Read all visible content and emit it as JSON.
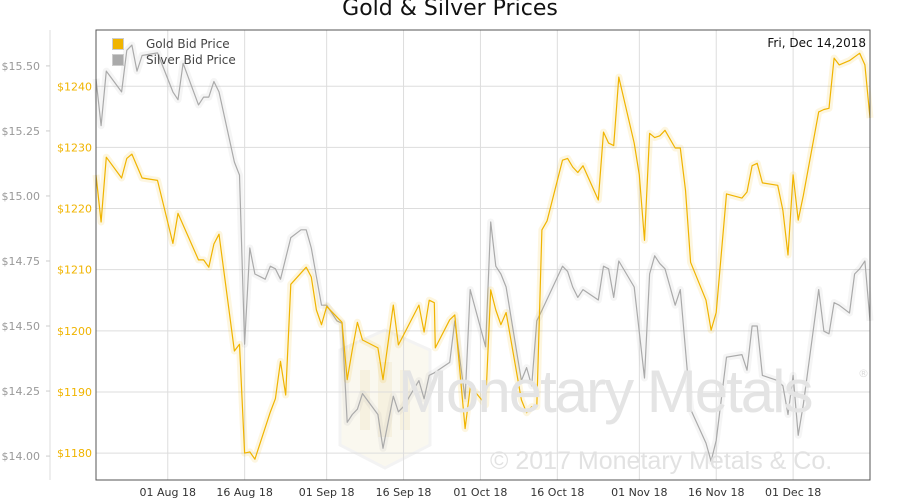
{
  "chart_data": {
    "type": "line",
    "title": "Gold & Silver Prices",
    "date_label": "Fri, Dec 14,2018",
    "watermark": "Monetary Metals",
    "copyright": "© 2017 Monetary Metals & Co.",
    "x_unit": "days since 18 Jul 2018",
    "xlim": [
      0,
      151
    ],
    "x_ticks": [
      {
        "day": 14,
        "label": "01 Aug 18"
      },
      {
        "day": 29,
        "label": "16 Aug 18"
      },
      {
        "day": 45,
        "label": "01 Sep 18"
      },
      {
        "day": 60,
        "label": "16 Sep 18"
      },
      {
        "day": 75,
        "label": "01 Oct 18"
      },
      {
        "day": 90,
        "label": "16 Oct 18"
      },
      {
        "day": 106,
        "label": "01 Nov 18"
      },
      {
        "day": 121,
        "label": "16 Nov 18"
      },
      {
        "day": 136,
        "label": "01 Dec 18"
      }
    ],
    "gold_axis": {
      "ylim": [
        1175.6,
        1249.2
      ],
      "ticks": [
        "$1180",
        "$1190",
        "$1200",
        "$1210",
        "$1220",
        "$1230",
        "$1240"
      ],
      "values": [
        1180,
        1190,
        1200,
        1210,
        1220,
        1230,
        1240
      ]
    },
    "silver_axis": {
      "ylim": [
        13.908,
        15.638
      ],
      "ticks": [
        "$14.00",
        "$14.25",
        "$14.50",
        "$14.75",
        "$15.00",
        "$15.25",
        "$15.50"
      ],
      "values": [
        14,
        14.25,
        14.5,
        14.75,
        15,
        15.25,
        15.5
      ]
    },
    "series": [
      {
        "name": "Gold Bid Price",
        "color": "#f0b400",
        "axis": "gold",
        "points": [
          [
            0,
            1225.5
          ],
          [
            1,
            1217.8
          ],
          [
            2,
            1228.4
          ],
          [
            5,
            1225
          ],
          [
            6,
            1228.2
          ],
          [
            7,
            1228.9
          ],
          [
            9,
            1225
          ],
          [
            12,
            1224.6
          ],
          [
            15,
            1214.3
          ],
          [
            16,
            1219.2
          ],
          [
            20,
            1211.6
          ],
          [
            21,
            1211.6
          ],
          [
            22,
            1210.4
          ],
          [
            23,
            1214.2
          ],
          [
            24,
            1215.8
          ],
          [
            27,
            1196.7
          ],
          [
            28,
            1197.8
          ],
          [
            29,
            1180
          ],
          [
            30,
            1180.2
          ],
          [
            31,
            1179
          ],
          [
            34,
            1186.7
          ],
          [
            35,
            1188.9
          ],
          [
            36,
            1195
          ],
          [
            37,
            1189.5
          ],
          [
            38,
            1207.6
          ],
          [
            41,
            1210.4
          ],
          [
            42,
            1208.8
          ],
          [
            43,
            1203.4
          ],
          [
            44,
            1201
          ],
          [
            45,
            1204
          ],
          [
            48,
            1201.4
          ],
          [
            49,
            1192
          ],
          [
            50,
            1196.9
          ],
          [
            51,
            1201.4
          ],
          [
            52,
            1198.5
          ],
          [
            55,
            1197.2
          ],
          [
            56,
            1192
          ],
          [
            58,
            1204.2
          ],
          [
            59,
            1197.7
          ],
          [
            60,
            1199.3
          ],
          [
            63,
            1204.2
          ],
          [
            64,
            1199.8
          ],
          [
            65,
            1205
          ],
          [
            66,
            1204.6
          ],
          [
            66.2,
            1197.2
          ],
          [
            69,
            1201.8
          ],
          [
            70,
            1202.6
          ],
          [
            72,
            1184
          ],
          [
            73,
            1190.7
          ],
          [
            74,
            1190
          ],
          [
            76,
            1187.9
          ],
          [
            77,
            1206.7
          ],
          [
            78,
            1203.4
          ],
          [
            79,
            1201
          ],
          [
            80,
            1203
          ],
          [
            83,
            1188.7
          ],
          [
            84,
            1186.6
          ],
          [
            85,
            1187.6
          ],
          [
            86,
            1187.6
          ],
          [
            87,
            1216.5
          ],
          [
            88,
            1218
          ],
          [
            91,
            1227.9
          ],
          [
            92,
            1228.2
          ],
          [
            93,
            1226.8
          ],
          [
            94,
            1225.9
          ],
          [
            95,
            1227
          ],
          [
            98,
            1221.4
          ],
          [
            99,
            1232.5
          ],
          [
            100,
            1230.7
          ],
          [
            101,
            1230.3
          ],
          [
            102,
            1241.5
          ],
          [
            105,
            1230.7
          ],
          [
            106,
            1225.5
          ],
          [
            107,
            1214.8
          ],
          [
            108,
            1232.3
          ],
          [
            109,
            1231.6
          ],
          [
            110,
            1231.9
          ],
          [
            111,
            1232.8
          ],
          [
            113,
            1229.9
          ],
          [
            114,
            1229.9
          ],
          [
            115,
            1223
          ],
          [
            116,
            1211.2
          ],
          [
            119,
            1205
          ],
          [
            120,
            1200.1
          ],
          [
            121,
            1203
          ],
          [
            123,
            1222.4
          ],
          [
            126,
            1221.7
          ],
          [
            127,
            1222.7
          ],
          [
            128,
            1227
          ],
          [
            129,
            1227.4
          ],
          [
            130,
            1224.2
          ],
          [
            133,
            1223.8
          ],
          [
            134,
            1219.7
          ],
          [
            135,
            1212.4
          ],
          [
            136,
            1225.5
          ],
          [
            137,
            1218.1
          ],
          [
            138,
            1222.2
          ],
          [
            141,
            1235.8
          ],
          [
            142,
            1236.2
          ],
          [
            143,
            1236.4
          ],
          [
            144,
            1244.6
          ],
          [
            145,
            1243.5
          ],
          [
            147,
            1244.2
          ],
          [
            149,
            1245.4
          ],
          [
            150,
            1243.5
          ],
          [
            151,
            1234.8
          ]
        ]
      },
      {
        "name": "Silver Bid Price",
        "color": "#aaaaaa",
        "axis": "silver",
        "points": [
          [
            0,
            15.45
          ],
          [
            1,
            15.27
          ],
          [
            2,
            15.48
          ],
          [
            5,
            15.4
          ],
          [
            6,
            15.56
          ],
          [
            7,
            15.58
          ],
          [
            8,
            15.48
          ],
          [
            9,
            15.54
          ],
          [
            12,
            15.55
          ],
          [
            15,
            15.4
          ],
          [
            16,
            15.37
          ],
          [
            17,
            15.51
          ],
          [
            20,
            15.35
          ],
          [
            21,
            15.38
          ],
          [
            22,
            15.38
          ],
          [
            23,
            15.44
          ],
          [
            24,
            15.4
          ],
          [
            27,
            15.13
          ],
          [
            28,
            15.08
          ],
          [
            29,
            14.43
          ],
          [
            30,
            14.8
          ],
          [
            31,
            14.7
          ],
          [
            33,
            14.68
          ],
          [
            34,
            14.73
          ],
          [
            35,
            14.72
          ],
          [
            36,
            14.68
          ],
          [
            38,
            14.84
          ],
          [
            40,
            14.87
          ],
          [
            41,
            14.87
          ],
          [
            42,
            14.8
          ],
          [
            44,
            14.58
          ],
          [
            45,
            14.58
          ],
          [
            46,
            14.55
          ],
          [
            47,
            14.52
          ],
          [
            48,
            14.51
          ],
          [
            49,
            14.13
          ],
          [
            50,
            14.16
          ],
          [
            51,
            14.18
          ],
          [
            52,
            14.24
          ],
          [
            55,
            14.16
          ],
          [
            56,
            14.03
          ],
          [
            58,
            14.23
          ],
          [
            59,
            14.17
          ],
          [
            60,
            14.19
          ],
          [
            63,
            14.29
          ],
          [
            64,
            14.22
          ],
          [
            65,
            14.31
          ],
          [
            66,
            14.32
          ],
          [
            69,
            14.36
          ],
          [
            70,
            14.52
          ],
          [
            72,
            14.22
          ],
          [
            73,
            14.64
          ],
          [
            76,
            14.42
          ],
          [
            77,
            14.9
          ],
          [
            78,
            14.73
          ],
          [
            79,
            14.7
          ],
          [
            80,
            14.65
          ],
          [
            83,
            14.29
          ],
          [
            84,
            14.34
          ],
          [
            85,
            14.27
          ],
          [
            86,
            14.52
          ],
          [
            87,
            14.56
          ],
          [
            91,
            14.73
          ],
          [
            92,
            14.71
          ],
          [
            93,
            14.65
          ],
          [
            94,
            14.61
          ],
          [
            95,
            14.64
          ],
          [
            98,
            14.6
          ],
          [
            99,
            14.73
          ],
          [
            100,
            14.72
          ],
          [
            101,
            14.61
          ],
          [
            102,
            14.75
          ],
          [
            105,
            14.65
          ],
          [
            107,
            14.3
          ],
          [
            108,
            14.7
          ],
          [
            109,
            14.77
          ],
          [
            110,
            14.74
          ],
          [
            111,
            14.72
          ],
          [
            113,
            14.58
          ],
          [
            114,
            14.64
          ],
          [
            116,
            14.18
          ],
          [
            119,
            14.05
          ],
          [
            120,
            13.98
          ],
          [
            121,
            14.06
          ],
          [
            123,
            14.38
          ],
          [
            126,
            14.39
          ],
          [
            127,
            14.33
          ],
          [
            128,
            14.5
          ],
          [
            129,
            14.5
          ],
          [
            130,
            14.31
          ],
          [
            133,
            14.29
          ],
          [
            134,
            14.27
          ],
          [
            135,
            14.16
          ],
          [
            136,
            14.31
          ],
          [
            137,
            14.08
          ],
          [
            138,
            14.2
          ],
          [
            141,
            14.64
          ],
          [
            142,
            14.48
          ],
          [
            143,
            14.47
          ],
          [
            144,
            14.59
          ],
          [
            145,
            14.58
          ],
          [
            147,
            14.55
          ],
          [
            148,
            14.7
          ],
          [
            149,
            14.72
          ],
          [
            150,
            14.75
          ],
          [
            151,
            14.52
          ]
        ]
      }
    ]
  }
}
